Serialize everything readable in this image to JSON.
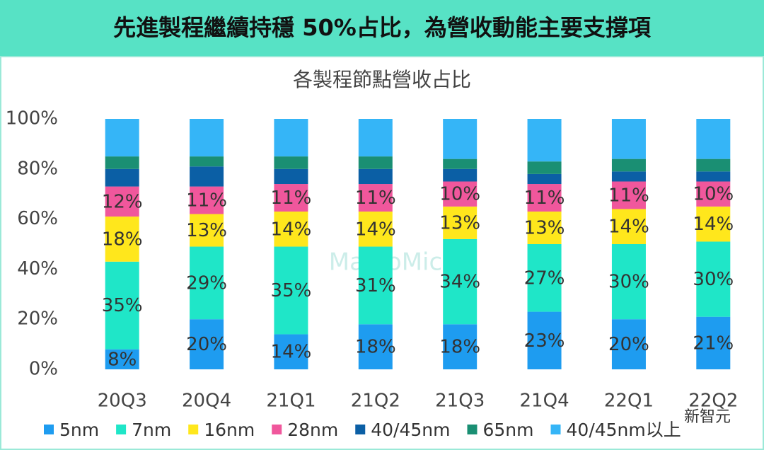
{
  "chart_data": {
    "type": "stacked_bar",
    "title": "先進製程繼續持穩 50%占比，為營收動能主要支撐項",
    "subtitle": "各製程節點營收占比",
    "categories": [
      "20Q3",
      "20Q4",
      "21Q1",
      "21Q2",
      "21Q3",
      "21Q4",
      "22Q1",
      "22Q2"
    ],
    "series": [
      {
        "name": "5nm",
        "color": "#1e9cf0",
        "values": [
          8,
          20,
          14,
          18,
          18,
          23,
          20,
          21
        ],
        "value_labels": [
          "8%",
          "20%",
          "14%",
          "18%",
          "18%",
          "23%",
          "20%",
          "21%"
        ]
      },
      {
        "name": "7nm",
        "color": "#1fe6c8",
        "values": [
          35,
          29,
          35,
          31,
          34,
          27,
          30,
          30
        ],
        "value_labels": [
          "35%",
          "29%",
          "35%",
          "31%",
          "34%",
          "27%",
          "30%",
          "30%"
        ]
      },
      {
        "name": "16nm",
        "color": "#ffe71c",
        "values": [
          18,
          13,
          14,
          14,
          13,
          13,
          14,
          14
        ],
        "value_labels": [
          "18%",
          "13%",
          "14%",
          "14%",
          "13%",
          "13%",
          "14%",
          "14%"
        ]
      },
      {
        "name": "28nm",
        "color": "#f0579c",
        "values": [
          12,
          11,
          11,
          11,
          10,
          11,
          11,
          10
        ],
        "value_labels": [
          "12%",
          "11%",
          "11%",
          "11%",
          "10%",
          "11%",
          "11%",
          "10%"
        ]
      },
      {
        "name": "40/45nm",
        "color": "#0b5fa5",
        "values": [
          7,
          8,
          6,
          6,
          5,
          4,
          4,
          4
        ]
      },
      {
        "name": "65nm",
        "color": "#1a8f73",
        "values": [
          5,
          4,
          5,
          5,
          4,
          5,
          5,
          5
        ]
      },
      {
        "name": "40/45nm以上",
        "color": "#35b5f7",
        "values": [
          15,
          15,
          15,
          15,
          16,
          17,
          16,
          16
        ]
      }
    ],
    "ylim": [
      0,
      100
    ],
    "yticks": [
      {
        "value": 0,
        "label": "0%"
      },
      {
        "value": 20,
        "label": "20%"
      },
      {
        "value": 40,
        "label": "40%"
      },
      {
        "value": 60,
        "label": "60%"
      },
      {
        "value": 80,
        "label": "80%"
      },
      {
        "value": 100,
        "label": "100%"
      }
    ],
    "legend": "bottom",
    "watermarks": [
      "MacroMicro",
      "新智元"
    ]
  }
}
